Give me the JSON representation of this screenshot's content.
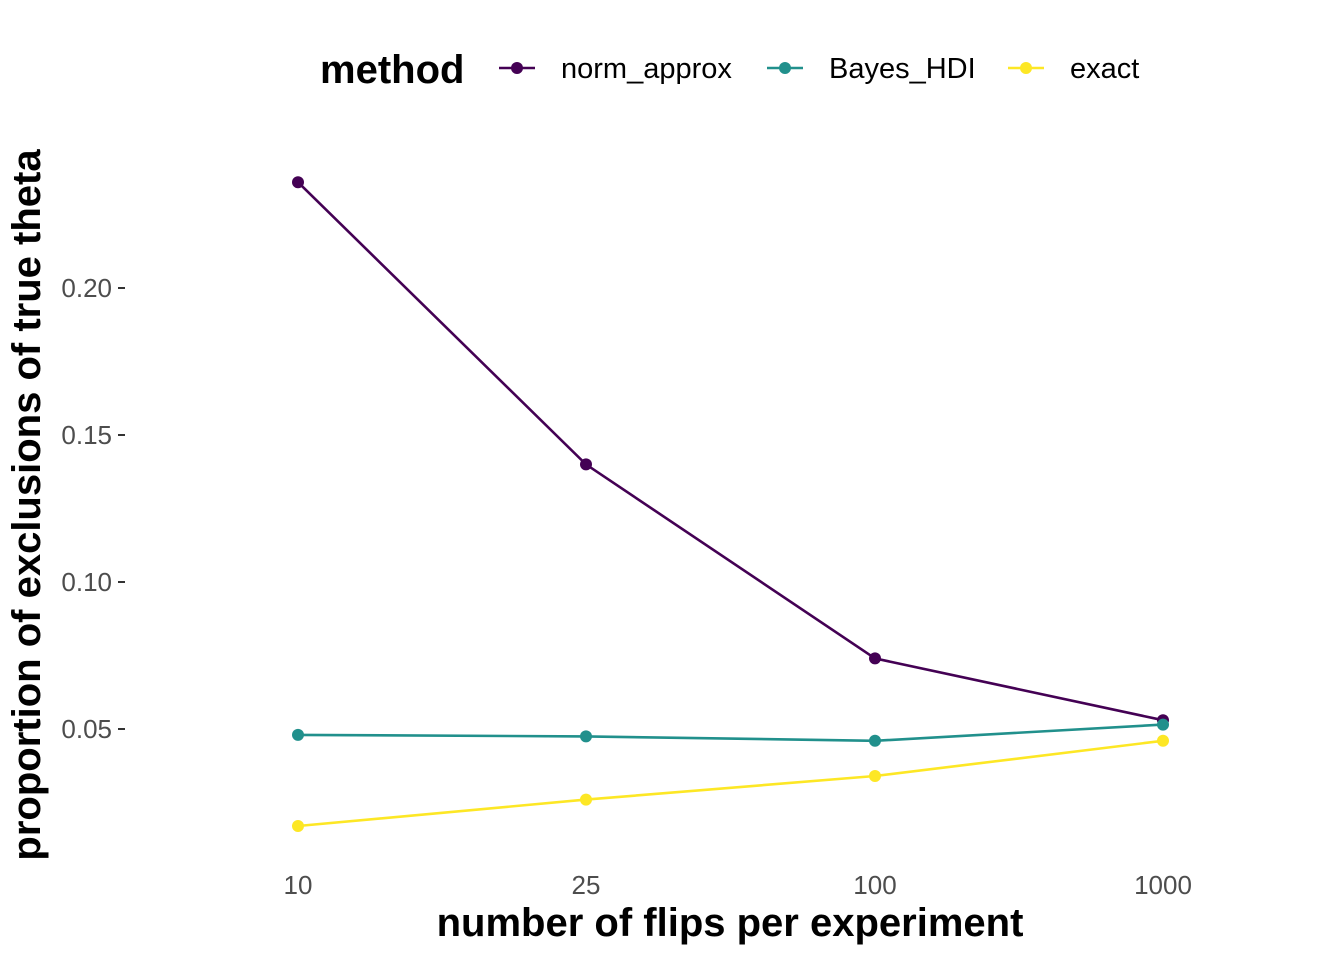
{
  "chart_data": {
    "type": "line",
    "xlabel": "number of flips per experiment",
    "ylabel": "proportion of exclusions of true theta",
    "categories": [
      "10",
      "25",
      "100",
      "1000"
    ],
    "y_ticks": [
      "0.05",
      "0.10",
      "0.15",
      "0.20"
    ],
    "ylim": [
      0.01,
      0.245
    ],
    "grid": false,
    "legend": {
      "title": "method",
      "position": "top"
    },
    "series": [
      {
        "name": "norm_approx",
        "color": "#440154",
        "values": [
          0.236,
          0.14,
          0.074,
          0.053
        ]
      },
      {
        "name": "Bayes_HDI",
        "color": "#21908C",
        "values": [
          0.048,
          0.0475,
          0.046,
          0.0515
        ]
      },
      {
        "name": "exact",
        "color": "#FDE725",
        "values": [
          0.017,
          0.026,
          0.034,
          0.046
        ]
      }
    ]
  }
}
